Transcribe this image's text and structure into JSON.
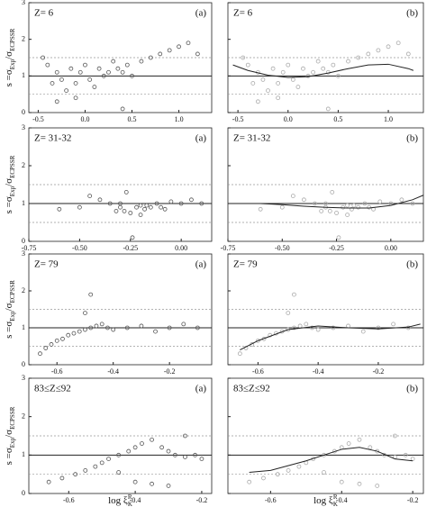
{
  "ylabel": {
    "main": "s =σ",
    "sub1": "Exp",
    "mid": "/σ",
    "sub2": "ECPSSR"
  },
  "xlabel": {
    "main": "log ξ",
    "sub": "K",
    "sup": "R"
  },
  "chart_data": [
    {
      "type": "scatter",
      "title": "Z= 6",
      "label": "(a)",
      "xlim": [
        -0.6,
        1.35
      ],
      "xticks": [
        -0.5,
        {
          "value": 0,
          "label": "0.0"
        },
        0.5,
        {
          "value": 1,
          "label": "1.0"
        }
      ],
      "ylim": [
        0,
        3
      ],
      "yticks": [
        0,
        1,
        2,
        3
      ],
      "reference_lines": [
        0.5,
        1,
        1.5
      ],
      "color": "#555555",
      "x": [
        -0.45,
        -0.4,
        -0.35,
        -0.3,
        -0.25,
        -0.2,
        -0.15,
        -0.1,
        -0.05,
        0,
        0.05,
        0.1,
        0.15,
        0.2,
        0.25,
        0.3,
        0.35,
        0.4,
        0.45,
        0.5,
        0.6,
        0.7,
        0.8,
        0.9,
        1.0,
        1.1,
        1.2,
        -0.3,
        -0.1,
        0.4
      ],
      "values": [
        1.5,
        1.3,
        0.8,
        0.3,
        0.9,
        0.6,
        1.2,
        0.8,
        1.1,
        1.3,
        0.9,
        0.7,
        1.2,
        1.0,
        1.1,
        1.4,
        1.2,
        1.1,
        1.3,
        1.0,
        1.4,
        1.5,
        1.6,
        1.7,
        1.8,
        1.9,
        1.6,
        1.1,
        0.4,
        0.1
      ]
    },
    {
      "type": "scatter",
      "title": "Z= 6",
      "label": "(b)",
      "xlim": [
        -0.6,
        1.35
      ],
      "xticks": [
        -0.5,
        {
          "value": 0,
          "label": "0.0"
        },
        0.5,
        {
          "value": 1,
          "label": "1.0"
        }
      ],
      "ylim": [
        0,
        3
      ],
      "yticks": [
        0,
        1,
        2,
        3
      ],
      "reference_lines": [
        0.5,
        1,
        1.5
      ],
      "color": "#aaaaaa",
      "x": [
        -0.45,
        -0.4,
        -0.35,
        -0.3,
        -0.25,
        -0.2,
        -0.15,
        -0.1,
        -0.05,
        0,
        0.05,
        0.1,
        0.15,
        0.2,
        0.25,
        0.3,
        0.35,
        0.4,
        0.45,
        0.5,
        0.6,
        0.7,
        0.8,
        0.9,
        1.0,
        1.1,
        1.2,
        -0.3,
        -0.1,
        0.4
      ],
      "values": [
        1.5,
        1.3,
        0.8,
        0.3,
        0.9,
        0.6,
        1.2,
        0.8,
        1.1,
        1.3,
        0.9,
        0.7,
        1.2,
        1.0,
        1.1,
        1.4,
        1.2,
        1.1,
        1.3,
        1.0,
        1.4,
        1.5,
        1.6,
        1.7,
        1.8,
        1.9,
        1.6,
        1.1,
        0.4,
        0.1
      ],
      "curve": {
        "x": [
          -0.55,
          -0.4,
          -0.2,
          0,
          0.2,
          0.4,
          0.6,
          0.8,
          1.0,
          1.2,
          1.25
        ],
        "values": [
          1.3,
          1.15,
          1.02,
          0.96,
          0.98,
          1.08,
          1.2,
          1.3,
          1.32,
          1.2,
          1.15
        ]
      }
    },
    {
      "type": "scatter",
      "title": "Z= 31-32",
      "label": "(a)",
      "xlim": [
        -0.75,
        0.15
      ],
      "xticks": [
        {
          "value": -0.75,
          "label": "-0.75"
        },
        {
          "value": -0.5,
          "label": "-0.50"
        },
        -0.25,
        {
          "value": 0,
          "label": "0.00"
        }
      ],
      "ylim": [
        0,
        3
      ],
      "yticks": [
        0,
        1,
        2,
        3
      ],
      "reference_lines": [
        0.5,
        1,
        1.5
      ],
      "color": "#555555",
      "x": [
        -0.6,
        -0.5,
        -0.45,
        -0.4,
        -0.35,
        -0.3,
        -0.28,
        -0.25,
        -0.22,
        -0.2,
        -0.18,
        -0.15,
        -0.12,
        -0.1,
        -0.08,
        -0.05,
        0,
        0.05,
        0.1,
        -0.32,
        -0.27,
        -0.24,
        -0.2,
        -0.17,
        -0.3
      ],
      "values": [
        0.85,
        0.9,
        1.2,
        1.1,
        1.0,
        0.9,
        0.8,
        0.75,
        0.9,
        0.95,
        0.85,
        0.9,
        1.0,
        0.9,
        0.85,
        1.05,
        1.0,
        1.1,
        1.0,
        0.8,
        1.3,
        0.1,
        0.7,
        0.95,
        1.0
      ]
    },
    {
      "type": "scatter",
      "title": "Z= 31-32",
      "label": "(b)",
      "xlim": [
        -0.75,
        0.15
      ],
      "xticks": [
        {
          "value": -0.75,
          "label": "-0.75"
        },
        {
          "value": -0.5,
          "label": "-0.50"
        },
        -0.25,
        {
          "value": 0,
          "label": "0.00"
        }
      ],
      "ylim": [
        0,
        3
      ],
      "yticks": [
        0,
        1,
        2,
        3
      ],
      "reference_lines": [
        0.5,
        1,
        1.5
      ],
      "color": "#aaaaaa",
      "x": [
        -0.6,
        -0.5,
        -0.45,
        -0.4,
        -0.35,
        -0.3,
        -0.28,
        -0.25,
        -0.22,
        -0.2,
        -0.18,
        -0.15,
        -0.12,
        -0.1,
        -0.08,
        -0.05,
        0,
        0.05,
        0.1,
        -0.32,
        -0.27,
        -0.24,
        -0.2,
        -0.17,
        -0.3
      ],
      "values": [
        0.85,
        0.9,
        1.2,
        1.1,
        1.0,
        0.9,
        0.8,
        0.75,
        0.9,
        0.95,
        0.85,
        0.9,
        1.0,
        0.9,
        0.85,
        1.05,
        1.0,
        1.1,
        1.0,
        0.8,
        1.3,
        0.1,
        0.7,
        0.95,
        1.0
      ],
      "curve": {
        "x": [
          -0.6,
          -0.5,
          -0.4,
          -0.3,
          -0.2,
          -0.1,
          0,
          0.1,
          0.15
        ],
        "values": [
          1.0,
          0.97,
          0.93,
          0.9,
          0.88,
          0.88,
          0.95,
          1.1,
          1.22
        ]
      }
    },
    {
      "type": "scatter",
      "title": "Z= 79",
      "label": "(a)",
      "xlim": [
        -0.7,
        -0.05
      ],
      "xticks": [
        -0.6,
        -0.4,
        -0.2
      ],
      "ylim": [
        0,
        3
      ],
      "yticks": [
        0,
        1,
        2,
        3
      ],
      "reference_lines": [
        0.5,
        1,
        1.5
      ],
      "color": "#555555",
      "x": [
        -0.66,
        -0.64,
        -0.62,
        -0.6,
        -0.58,
        -0.56,
        -0.54,
        -0.52,
        -0.5,
        -0.48,
        -0.46,
        -0.44,
        -0.42,
        -0.4,
        -0.35,
        -0.3,
        -0.25,
        -0.2,
        -0.15,
        -0.1,
        -0.48,
        -0.5
      ],
      "values": [
        0.3,
        0.45,
        0.55,
        0.65,
        0.7,
        0.8,
        0.85,
        0.9,
        0.95,
        1.0,
        1.05,
        1.1,
        1.0,
        0.95,
        1.0,
        1.05,
        0.9,
        1.0,
        1.1,
        1.0,
        1.9,
        1.4
      ]
    },
    {
      "type": "scatter",
      "title": "Z= 79",
      "label": "(b)",
      "xlim": [
        -0.7,
        -0.05
      ],
      "xticks": [
        -0.6,
        -0.4,
        -0.2
      ],
      "ylim": [
        0,
        3
      ],
      "yticks": [
        0,
        1,
        2,
        3
      ],
      "reference_lines": [
        0.5,
        1,
        1.5
      ],
      "color": "#aaaaaa",
      "x": [
        -0.66,
        -0.64,
        -0.62,
        -0.6,
        -0.58,
        -0.56,
        -0.54,
        -0.52,
        -0.5,
        -0.48,
        -0.46,
        -0.44,
        -0.42,
        -0.4,
        -0.35,
        -0.3,
        -0.25,
        -0.2,
        -0.15,
        -0.1,
        -0.48,
        -0.5
      ],
      "values": [
        0.3,
        0.45,
        0.55,
        0.65,
        0.7,
        0.8,
        0.85,
        0.9,
        0.95,
        1.0,
        1.05,
        1.1,
        1.0,
        0.95,
        1.0,
        1.05,
        0.9,
        1.0,
        1.1,
        1.0,
        1.9,
        1.4
      ],
      "curve": {
        "x": [
          -0.66,
          -0.6,
          -0.5,
          -0.4,
          -0.3,
          -0.2,
          -0.1,
          -0.06
        ],
        "values": [
          0.4,
          0.65,
          0.95,
          1.05,
          1.0,
          0.97,
          1.02,
          1.1
        ]
      }
    },
    {
      "type": "scatter",
      "title": "83≤Z≤92",
      "label": "(a)",
      "xlim": [
        -0.72,
        -0.17
      ],
      "xticks": [
        -0.6,
        -0.4,
        -0.2
      ],
      "ylim": [
        0,
        3
      ],
      "yticks": [
        0,
        1,
        2,
        3
      ],
      "reference_lines": [
        0.5,
        1,
        1.5
      ],
      "color": "#555555",
      "x": [
        -0.66,
        -0.62,
        -0.58,
        -0.55,
        -0.52,
        -0.5,
        -0.48,
        -0.45,
        -0.42,
        -0.4,
        -0.38,
        -0.35,
        -0.32,
        -0.3,
        -0.28,
        -0.25,
        -0.22,
        -0.2,
        -0.35,
        -0.4,
        -0.3,
        -0.45,
        -0.25
      ],
      "values": [
        0.3,
        0.4,
        0.5,
        0.6,
        0.7,
        0.8,
        0.9,
        1.0,
        1.1,
        1.2,
        1.3,
        1.4,
        1.2,
        1.1,
        1.0,
        0.95,
        1.0,
        0.9,
        0.25,
        0.3,
        0.2,
        0.55,
        1.5
      ]
    },
    {
      "type": "scatter",
      "title": "83≤Z≤92",
      "label": "(b)",
      "xlim": [
        -0.72,
        -0.17
      ],
      "xticks": [
        -0.6,
        -0.4,
        -0.2
      ],
      "ylim": [
        0,
        3
      ],
      "yticks": [
        0,
        1,
        2,
        3
      ],
      "reference_lines": [
        0.5,
        1,
        1.5
      ],
      "color": "#aaaaaa",
      "x": [
        -0.66,
        -0.62,
        -0.58,
        -0.55,
        -0.52,
        -0.5,
        -0.48,
        -0.45,
        -0.42,
        -0.4,
        -0.38,
        -0.35,
        -0.32,
        -0.3,
        -0.28,
        -0.25,
        -0.22,
        -0.2,
        -0.35,
        -0.4,
        -0.3,
        -0.45,
        -0.25
      ],
      "values": [
        0.3,
        0.4,
        0.5,
        0.6,
        0.7,
        0.8,
        0.9,
        1.0,
        1.1,
        1.2,
        1.3,
        1.4,
        1.2,
        1.1,
        1.0,
        0.95,
        1.0,
        0.9,
        0.25,
        0.3,
        0.2,
        0.55,
        1.5
      ],
      "curve": {
        "x": [
          -0.66,
          -0.6,
          -0.5,
          -0.4,
          -0.35,
          -0.3,
          -0.25,
          -0.2
        ],
        "values": [
          0.55,
          0.6,
          0.85,
          1.15,
          1.2,
          1.1,
          0.9,
          0.85
        ]
      }
    }
  ]
}
